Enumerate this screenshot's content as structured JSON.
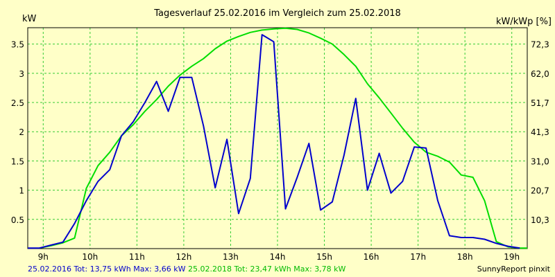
{
  "chart_data": {
    "type": "line",
    "title": "Tagesverlauf 25.02.2016 im Vergleich zum 25.02.2018",
    "ylabel_left": "kW",
    "ylabel_right": "kW/kWp [%]",
    "x_ticks": [
      "9h",
      "10h",
      "11h",
      "12h",
      "13h",
      "14h",
      "15h",
      "16h",
      "17h",
      "18h",
      "19h"
    ],
    "xlim": [
      8.67,
      19.33
    ],
    "ylim": [
      0,
      3.78
    ],
    "y_ticks_left": [
      "0.5",
      "1",
      "1.5",
      "2",
      "2.5",
      "3",
      "3.5"
    ],
    "y_ticks_right": [
      {
        "label": "10,3",
        "at": 0.5
      },
      {
        "label": "20,7",
        "at": 1.0
      },
      {
        "label": "31,0",
        "at": 1.5
      },
      {
        "label": "41,3",
        "at": 2.0
      },
      {
        "label": "51,7",
        "at": 2.5
      },
      {
        "label": "62,0",
        "at": 3.0
      },
      {
        "label": "72,3",
        "at": 3.5
      }
    ],
    "grid": true,
    "series": [
      {
        "name": "25.02.2016",
        "color": "#0000CC",
        "x": [
          8.67,
          8.92,
          9.17,
          9.42,
          9.67,
          9.92,
          10.17,
          10.42,
          10.67,
          10.92,
          11.17,
          11.42,
          11.67,
          11.92,
          12.17,
          12.42,
          12.67,
          12.92,
          13.17,
          13.42,
          13.67,
          13.92,
          14.17,
          14.42,
          14.67,
          14.92,
          15.17,
          15.42,
          15.67,
          15.92,
          16.17,
          16.42,
          16.67,
          16.92,
          17.17,
          17.42,
          17.67,
          17.92,
          18.17,
          18.42,
          18.67,
          18.92,
          19.17
        ],
        "values": [
          0.01,
          0.01,
          0.06,
          0.11,
          0.43,
          0.82,
          1.15,
          1.35,
          1.93,
          2.17,
          2.5,
          2.86,
          2.35,
          2.93,
          2.93,
          2.1,
          1.04,
          1.87,
          0.6,
          1.2,
          3.66,
          3.54,
          0.68,
          1.22,
          1.8,
          0.66,
          0.8,
          1.6,
          2.57,
          1.0,
          1.63,
          0.95,
          1.15,
          1.74,
          1.72,
          0.82,
          0.22,
          0.19,
          0.19,
          0.16,
          0.09,
          0.04,
          0.01
        ]
      },
      {
        "name": "25.02.2018",
        "color": "#00DD00",
        "x": [
          8.92,
          9.17,
          9.42,
          9.67,
          9.92,
          10.17,
          10.42,
          10.67,
          10.92,
          11.17,
          11.42,
          11.67,
          11.92,
          12.17,
          12.42,
          12.67,
          12.92,
          13.17,
          13.42,
          13.67,
          13.92,
          14.17,
          14.42,
          14.67,
          14.92,
          15.17,
          15.42,
          15.67,
          15.92,
          16.17,
          16.42,
          16.67,
          16.92,
          17.17,
          17.42,
          17.67,
          17.92,
          18.17,
          18.42,
          18.67,
          18.92,
          19.17,
          19.33
        ],
        "values": [
          0.01,
          0.05,
          0.1,
          0.18,
          1.03,
          1.42,
          1.65,
          1.93,
          2.12,
          2.35,
          2.55,
          2.78,
          2.97,
          3.12,
          3.25,
          3.42,
          3.55,
          3.63,
          3.7,
          3.74,
          3.76,
          3.77,
          3.75,
          3.69,
          3.6,
          3.5,
          3.32,
          3.12,
          2.82,
          2.58,
          2.32,
          2.06,
          1.82,
          1.65,
          1.58,
          1.48,
          1.26,
          1.22,
          0.82,
          0.12,
          0.03,
          0.01,
          0.01
        ]
      }
    ]
  },
  "footer": {
    "s1_text": "25.02.2016 Tot: 13,75 kWh Max: 3,66 kW",
    "s2_text": "25.02.2018 Tot: 23,47 kWh Max: 3,78 kW",
    "credit": "SunnyReport pinxit"
  }
}
